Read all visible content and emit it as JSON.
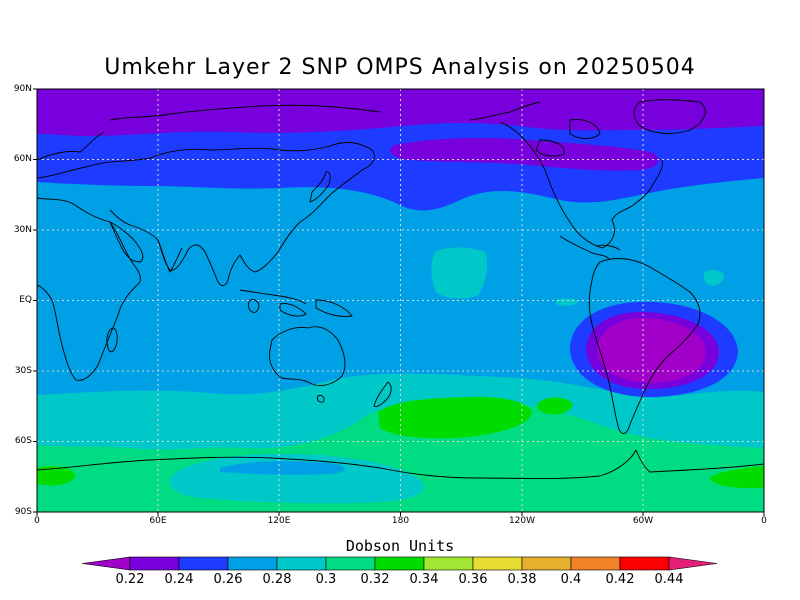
{
  "title": "Umkehr Layer 2 SNP OMPS Analysis on 20250504",
  "units_label": "Dobson Units",
  "lat_ticks": [
    "90N",
    "60N",
    "30N",
    "EQ",
    "30S",
    "60S",
    "90S"
  ],
  "lon_ticks": [
    "0",
    "60E",
    "120E",
    "180",
    "120W",
    "60W",
    "0"
  ],
  "colorbar": {
    "labels": [
      "0.22",
      "0.24",
      "0.26",
      "0.28",
      "0.3",
      "0.32",
      "0.34",
      "0.36",
      "0.38",
      "0.4",
      "0.42",
      "0.44"
    ],
    "colors": [
      "#a000c8",
      "#7800dc",
      "#1e3cff",
      "#00a0e6",
      "#00c8c8",
      "#00dc82",
      "#00dc00",
      "#a0e632",
      "#e6dc32",
      "#e6af2d",
      "#f08228",
      "#fa0000",
      "#e61e78"
    ]
  },
  "chart_data": {
    "type": "heatmap",
    "title": "Umkehr Layer 2 SNP OMPS Analysis on 20250504",
    "legend_title": "Dobson Units",
    "x_ticks": [
      "0",
      "60E",
      "120E",
      "180",
      "120W",
      "60W",
      "0"
    ],
    "y_ticks": [
      "90N",
      "60N",
      "30N",
      "EQ",
      "30S",
      "60S",
      "90S"
    ],
    "xlim": [
      0,
      360
    ],
    "ylim": [
      -90,
      90
    ],
    "levels": [
      0.22,
      0.24,
      0.26,
      0.28,
      0.3,
      0.32,
      0.34,
      0.36,
      0.38,
      0.4,
      0.42,
      0.44
    ],
    "grid": true,
    "background_value": 0.27,
    "features": [
      {
        "region": "north polar cap",
        "lat": [
          75,
          90
        ],
        "lon": [
          0,
          360
        ],
        "value": 0.23
      },
      {
        "region": "north hemisphere band",
        "lat": [
          50,
          75
        ],
        "lon": [
          0,
          360
        ],
        "value": 0.25
      },
      {
        "region": "northern Canada minimum",
        "lat": [
          58,
          70
        ],
        "lon": [
          190,
          320
        ],
        "value": 0.23
      },
      {
        "region": "South America minimum",
        "lat": [
          -35,
          0
        ],
        "lon": [
          295,
          325
        ],
        "value": 0.23
      },
      {
        "region": "central Pacific",
        "lat": [
          3,
          20
        ],
        "lon": [
          200,
          215
        ],
        "value": 0.29
      },
      {
        "region": "southern mid-latitude band",
        "lat": [
          -70,
          -40
        ],
        "lon": [
          0,
          360
        ],
        "value": 0.3
      },
      {
        "region": "south Pacific maximum",
        "lat": [
          -55,
          -45
        ],
        "lon": [
          170,
          230
        ],
        "value": 0.33
      },
      {
        "region": "Antarctic coast",
        "lat": [
          -80,
          -70
        ],
        "lon": [
          0,
          20
        ],
        "value": 0.33
      }
    ]
  }
}
